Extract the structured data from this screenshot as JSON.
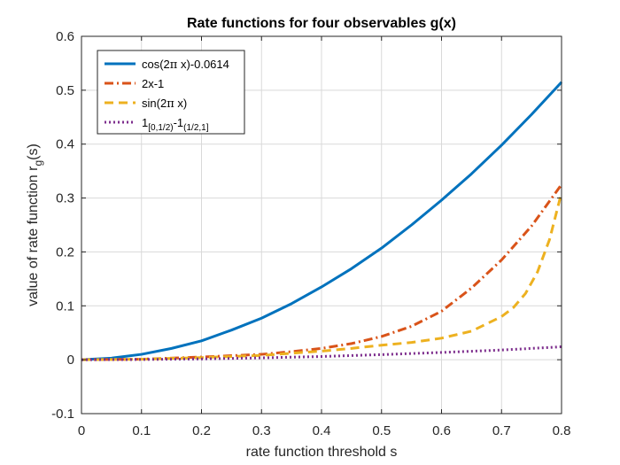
{
  "chart_data": {
    "type": "line",
    "title": "Rate functions for four observables g(x)",
    "xlabel": "rate function threshold s",
    "ylabel": {
      "main": "value of rate function r",
      "sub": "g",
      "suffix": "(s)"
    },
    "xlim": [
      0,
      0.8
    ],
    "ylim": [
      -0.1,
      0.6
    ],
    "xticks": [
      0,
      0.1,
      0.2,
      0.3,
      0.4,
      0.5,
      0.6,
      0.7,
      0.8
    ],
    "yticks": [
      -0.1,
      0,
      0.1,
      0.2,
      0.3,
      0.4,
      0.5,
      0.6
    ],
    "xtick_labels": [
      "0",
      "0.1",
      "0.2",
      "0.3",
      "0.4",
      "0.5",
      "0.6",
      "0.7",
      "0.8"
    ],
    "ytick_labels": [
      "-0.1",
      "0",
      "0.1",
      "0.2",
      "0.3",
      "0.4",
      "0.5",
      "0.6"
    ],
    "grid": true,
    "legend_position": "top-left",
    "series": [
      {
        "name": "cos(2π x)-0.0614",
        "legend": {
          "parts": [
            {
              "t": "cos(2"
            },
            {
              "t": "π",
              "style": "symbol"
            },
            {
              "t": " x)-0.0614"
            }
          ]
        },
        "color": "#0072BD",
        "dash": "solid",
        "x": [
          0,
          0.05,
          0.1,
          0.15,
          0.2,
          0.25,
          0.3,
          0.35,
          0.4,
          0.45,
          0.5,
          0.55,
          0.6,
          0.65,
          0.7,
          0.75,
          0.8
        ],
        "y": [
          0,
          0.003,
          0.01,
          0.021,
          0.035,
          0.055,
          0.077,
          0.104,
          0.135,
          0.169,
          0.207,
          0.25,
          0.296,
          0.345,
          0.398,
          0.455,
          0.515
        ]
      },
      {
        "name": "2x-1",
        "legend": {
          "parts": [
            {
              "t": "2x-1"
            }
          ]
        },
        "color": "#D95319",
        "dash": "dashdot",
        "x": [
          0,
          0.1,
          0.2,
          0.3,
          0.35,
          0.4,
          0.45,
          0.5,
          0.55,
          0.6,
          0.65,
          0.7,
          0.75,
          0.8
        ],
        "y": [
          0,
          0.001,
          0.005,
          0.01,
          0.015,
          0.021,
          0.03,
          0.043,
          0.062,
          0.09,
          0.133,
          0.185,
          0.248,
          0.325
        ]
      },
      {
        "name": "sin(2π x)",
        "legend": {
          "parts": [
            {
              "t": "sin(2"
            },
            {
              "t": "π",
              "style": "symbol"
            },
            {
              "t": " x)"
            }
          ]
        },
        "color": "#EDB120",
        "dash": "dashed",
        "x": [
          0,
          0.1,
          0.2,
          0.3,
          0.4,
          0.45,
          0.5,
          0.55,
          0.6,
          0.65,
          0.7,
          0.72,
          0.74,
          0.76,
          0.78,
          0.8
        ],
        "y": [
          0,
          0.001,
          0.004,
          0.008,
          0.016,
          0.021,
          0.027,
          0.032,
          0.04,
          0.053,
          0.08,
          0.097,
          0.123,
          0.163,
          0.223,
          0.31
        ]
      },
      {
        "name": "1[0,1/2)-1(1/2,1]",
        "legend": {
          "parts": [
            {
              "t": "1"
            },
            {
              "t": "[0,1/2)",
              "style": "sub"
            },
            {
              "t": "-1"
            },
            {
              "t": "(1/2,1]",
              "style": "sub"
            }
          ]
        },
        "color": "#7E2F8E",
        "dash": "dotted",
        "x": [
          0,
          0.1,
          0.2,
          0.3,
          0.4,
          0.5,
          0.6,
          0.7,
          0.8
        ],
        "y": [
          0,
          0.0004,
          0.0015,
          0.0035,
          0.006,
          0.0095,
          0.0135,
          0.018,
          0.024
        ]
      }
    ]
  }
}
